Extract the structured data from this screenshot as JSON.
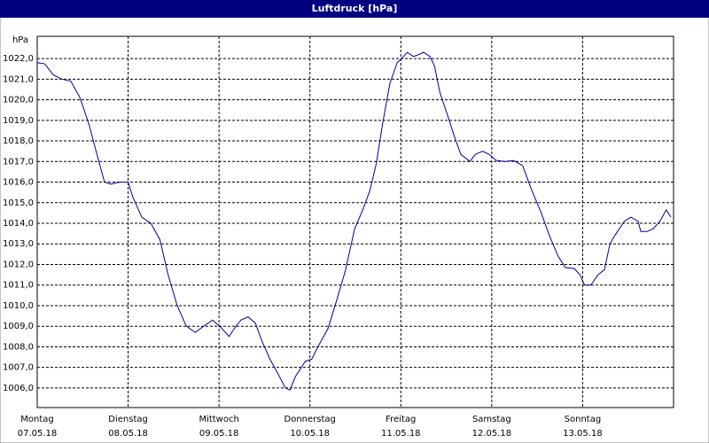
{
  "chart_data": {
    "type": "line",
    "title": "Luftdruck [hPa]",
    "y_label": "hPa",
    "color": "#000099",
    "grid": true,
    "xlim": [
      0,
      7
    ],
    "ylim": [
      1005.05,
      1023.08
    ],
    "xticks": [
      {
        "value": 0,
        "label": "Montag",
        "sublabel": "07.05.18"
      },
      {
        "value": 1,
        "label": "Dienstag",
        "sublabel": "08.05.18"
      },
      {
        "value": 2,
        "label": "Mittwoch",
        "sublabel": "09.05.18"
      },
      {
        "value": 3,
        "label": "Donnerstag",
        "sublabel": "10.05.18"
      },
      {
        "value": 4,
        "label": "Freitag",
        "sublabel": "11.05.18"
      },
      {
        "value": 5,
        "label": "Samstag",
        "sublabel": "12.05.18"
      },
      {
        "value": 6,
        "label": "Sonntag",
        "sublabel": "13.05.18"
      }
    ],
    "yticks": [
      {
        "value": 1006,
        "label": "1006,0"
      },
      {
        "value": 1007,
        "label": "1007,0"
      },
      {
        "value": 1008,
        "label": "1008,0"
      },
      {
        "value": 1009,
        "label": "1009,0"
      },
      {
        "value": 1010,
        "label": "1010,0"
      },
      {
        "value": 1011,
        "label": "1011,0"
      },
      {
        "value": 1012,
        "label": "1012,0"
      },
      {
        "value": 1013,
        "label": "1013,0"
      },
      {
        "value": 1014,
        "label": "1014,0"
      },
      {
        "value": 1015,
        "label": "1015,0"
      },
      {
        "value": 1016,
        "label": "1016,0"
      },
      {
        "value": 1017,
        "label": "1017,0"
      },
      {
        "value": 1018,
        "label": "1018,0"
      },
      {
        "value": 1019,
        "label": "1019,0"
      },
      {
        "value": 1020,
        "label": "1020,0"
      },
      {
        "value": 1021,
        "label": "1021,0"
      },
      {
        "value": 1022,
        "label": "1022,0"
      }
    ],
    "x": [
      0,
      0.08,
      0.18,
      0.27,
      0.37,
      0.47,
      0.57,
      0.66,
      0.74,
      0.81,
      0.91,
      1.0,
      1.05,
      1.15,
      1.25,
      1.35,
      1.44,
      1.54,
      1.64,
      1.74,
      1.83,
      1.93,
      2.03,
      2.11,
      2.17,
      2.24,
      2.32,
      2.4,
      2.47,
      2.56,
      2.66,
      2.73,
      2.78,
      2.84,
      2.95,
      3.02,
      3.1,
      3.2,
      3.29,
      3.39,
      3.49,
      3.59,
      3.66,
      3.73,
      3.8,
      3.88,
      3.96,
      4.03,
      4.07,
      4.14,
      4.2,
      4.25,
      4.32,
      4.37,
      4.43,
      4.51,
      4.59,
      4.66,
      4.76,
      4.82,
      4.9,
      4.97,
      5.05,
      5.15,
      5.24,
      5.34,
      5.44,
      5.54,
      5.63,
      5.73,
      5.81,
      5.91,
      5.97,
      6.02,
      6.09,
      6.17,
      6.24,
      6.3,
      6.36,
      6.46,
      6.53,
      6.61,
      6.64,
      6.71,
      6.78,
      6.85,
      6.92,
      6.97
    ],
    "values": [
      1021.8,
      1021.75,
      1021.2,
      1021.0,
      1020.9,
      1020.1,
      1018.8,
      1017.3,
      1016.0,
      1015.9,
      1016.0,
      1016.0,
      1015.3,
      1014.3,
      1014.0,
      1013.2,
      1011.5,
      1010.0,
      1009.0,
      1008.7,
      1009.0,
      1009.3,
      1008.9,
      1008.5,
      1008.9,
      1009.3,
      1009.45,
      1009.15,
      1008.3,
      1007.4,
      1006.6,
      1006.0,
      1005.9,
      1006.55,
      1007.3,
      1007.4,
      1008.1,
      1008.9,
      1010.2,
      1011.7,
      1013.7,
      1014.75,
      1015.6,
      1016.9,
      1018.85,
      1020.8,
      1021.8,
      1022.1,
      1022.3,
      1022.1,
      1022.2,
      1022.3,
      1022.1,
      1021.65,
      1020.35,
      1019.3,
      1018.2,
      1017.35,
      1017.0,
      1017.35,
      1017.5,
      1017.35,
      1017.05,
      1017.0,
      1017.05,
      1016.8,
      1015.6,
      1014.55,
      1013.45,
      1012.4,
      1011.85,
      1011.8,
      1011.5,
      1011.0,
      1011.0,
      1011.5,
      1011.75,
      1013.0,
      1013.45,
      1014.1,
      1014.3,
      1014.1,
      1013.6,
      1013.6,
      1013.75,
      1014.1,
      1014.65,
      1014.3
    ]
  }
}
